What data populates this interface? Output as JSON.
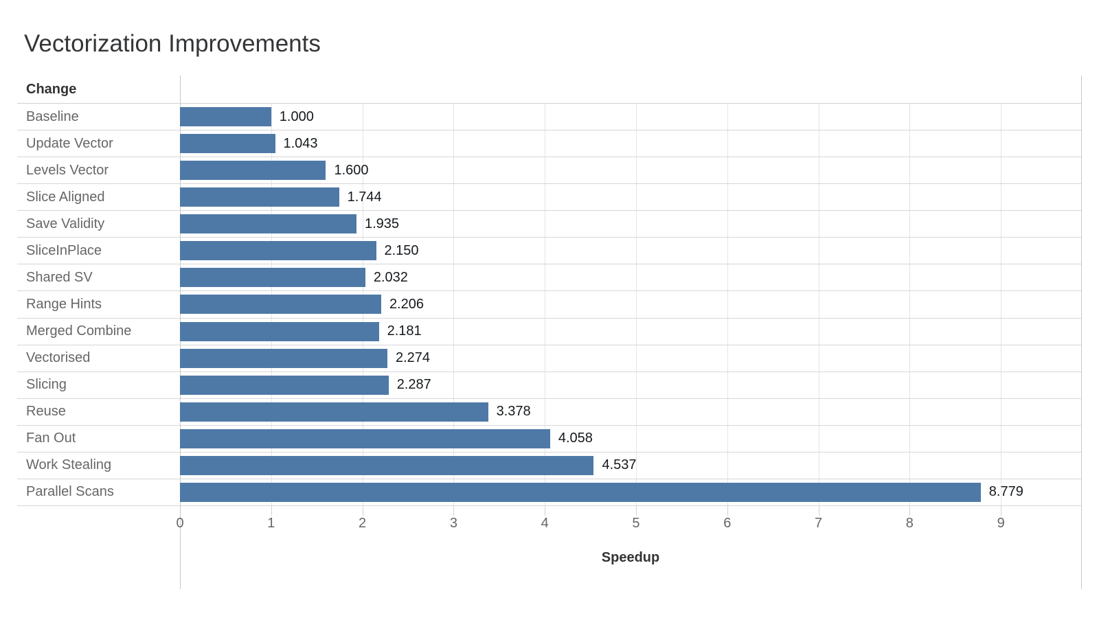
{
  "title": "Vectorization Improvements",
  "chart_data": {
    "type": "bar",
    "orientation": "horizontal",
    "title": "Vectorization Improvements",
    "row_header": "Change",
    "xlabel": "Speedup",
    "categories": [
      "Baseline",
      "Update Vector",
      "Levels Vector",
      "Slice Aligned",
      "Save Validity",
      "SliceInPlace",
      "Shared SV",
      "Range Hints",
      "Merged Combine",
      "Vectorised",
      "Slicing",
      "Reuse",
      "Fan Out",
      "Work Stealing",
      "Parallel Scans"
    ],
    "values": [
      1.0,
      1.043,
      1.6,
      1.744,
      1.935,
      2.15,
      2.032,
      2.206,
      2.181,
      2.274,
      2.287,
      3.378,
      4.058,
      4.537,
      8.779
    ],
    "value_labels": [
      "1.000",
      "1.043",
      "1.600",
      "1.744",
      "1.935",
      "2.150",
      "2.032",
      "2.206",
      "2.181",
      "2.274",
      "2.287",
      "3.378",
      "4.058",
      "4.537",
      "8.779"
    ],
    "x_ticks": [
      0,
      1,
      2,
      3,
      4,
      5,
      6,
      7,
      8,
      9
    ],
    "xlim": [
      0,
      9.88
    ],
    "grid": true,
    "legend": false
  },
  "colors": {
    "bar": "#4e79a7",
    "title_text": "#333537",
    "category_text": "#666666",
    "value_text": "#15191c",
    "header_text": "#333333",
    "tick_text": "#666666",
    "gridline": "#e4e4e4",
    "row_separator": "#d6d6d6",
    "axis_line": "#c6c6c6"
  }
}
